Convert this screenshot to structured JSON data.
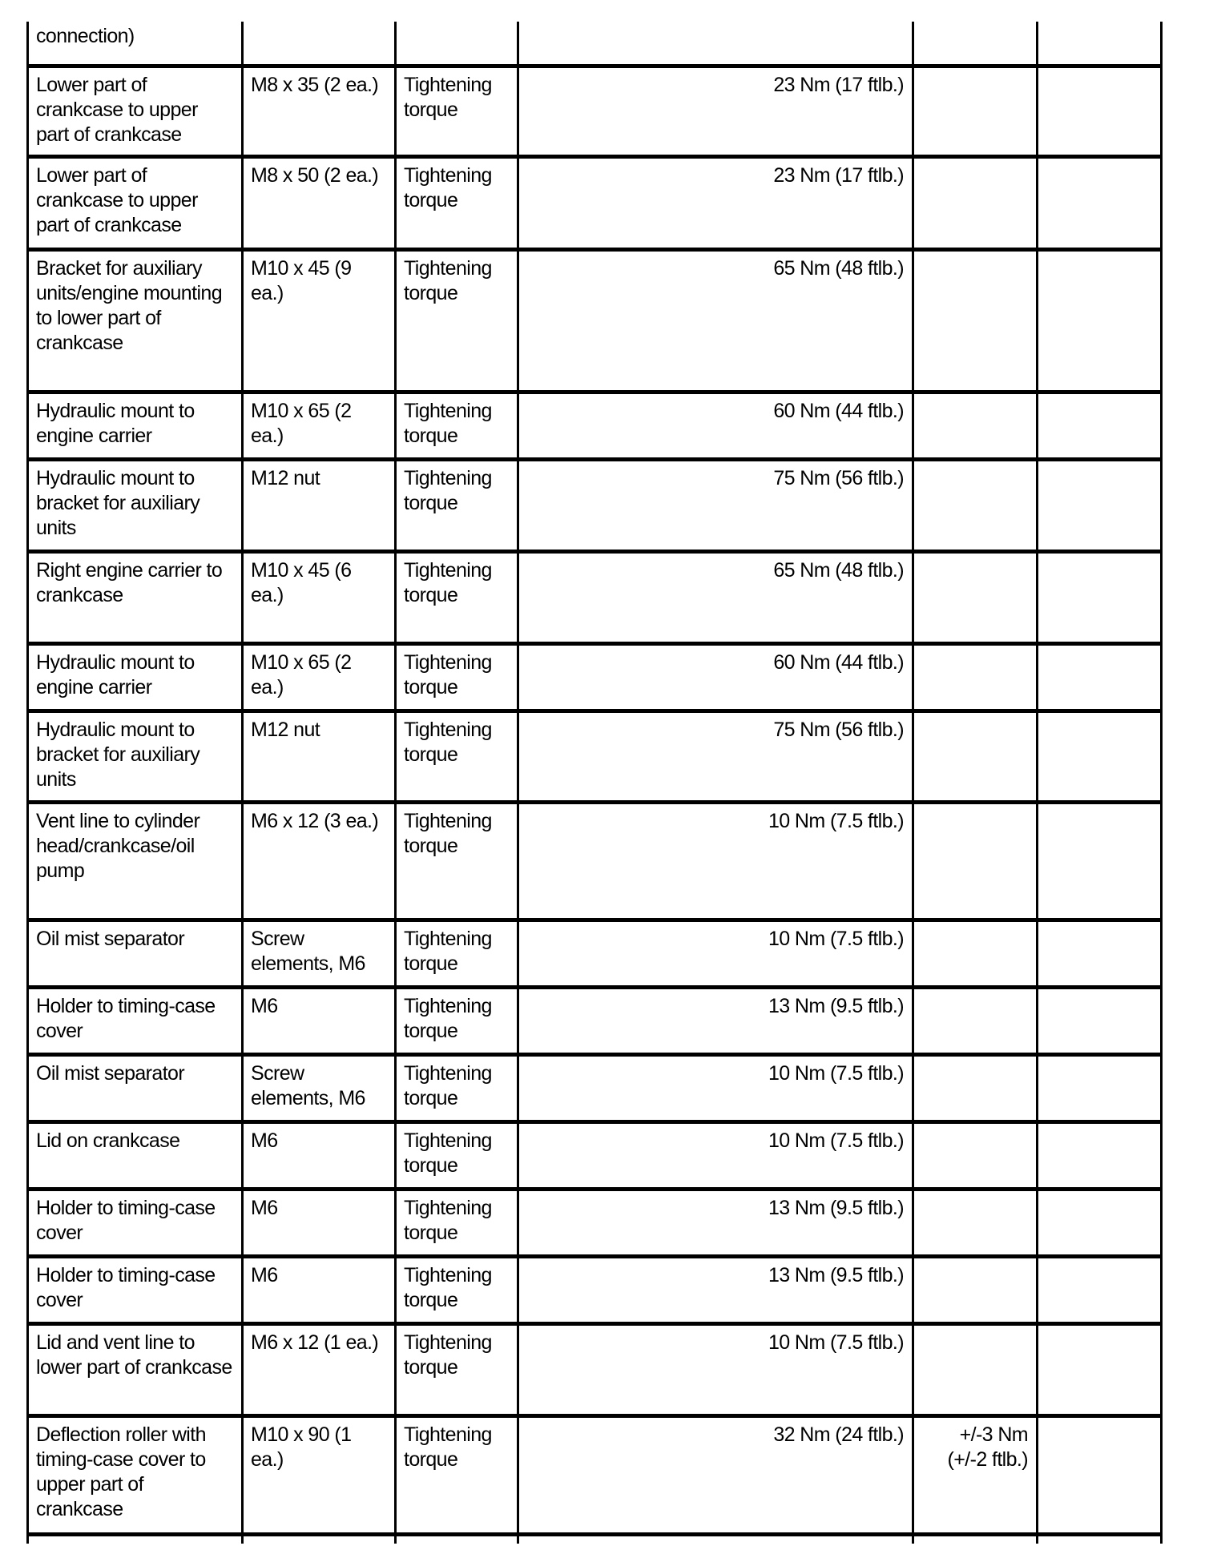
{
  "rows": [
    {
      "component": "connection)",
      "size": "",
      "type": "",
      "value": "",
      "tolerance": "",
      "note": ""
    },
    {
      "component": "Lower part of crankcase to upper part of crankcase",
      "size": "M8 x 35 (2 ea.)",
      "type": "Tightening torque",
      "value": "23 Nm (17 ftlb.)",
      "tolerance": "",
      "note": ""
    },
    {
      "component": "Lower part of crankcase to upper part of crankcase",
      "size": "M8 x 50 (2 ea.)",
      "type": "Tightening torque",
      "value": "23 Nm (17 ftlb.)",
      "tolerance": "",
      "note": ""
    },
    {
      "component": "Bracket for auxiliary units/engine mounting to lower part of crankcase",
      "size": "M10 x 45 (9 ea.)",
      "type": "Tightening torque",
      "value": "65 Nm (48 ftlb.)",
      "tolerance": "",
      "note": ""
    },
    {
      "component": "Hydraulic mount to engine carrier",
      "size": "M10 x 65 (2 ea.)",
      "type": "Tightening torque",
      "value": "60 Nm (44 ftlb.)",
      "tolerance": "",
      "note": ""
    },
    {
      "component": "Hydraulic mount to bracket for auxiliary units",
      "size": "M12 nut",
      "type": "Tightening torque",
      "value": "75 Nm (56 ftlb.)",
      "tolerance": "",
      "note": ""
    },
    {
      "component": "Right engine carrier to crankcase",
      "size": "M10 x 45 (6 ea.)",
      "type": "Tightening torque",
      "value": "65 Nm (48 ftlb.)",
      "tolerance": "",
      "note": ""
    },
    {
      "component": "Hydraulic mount to engine carrier",
      "size": "M10 x 65 (2 ea.)",
      "type": "Tightening torque",
      "value": "60 Nm (44 ftlb.)",
      "tolerance": "",
      "note": ""
    },
    {
      "component": "Hydraulic mount to bracket for auxiliary units",
      "size": "M12 nut",
      "type": "Tightening torque",
      "value": "75 Nm (56 ftlb.)",
      "tolerance": "",
      "note": ""
    },
    {
      "component": "Vent line to cylinder head/crankcase/oil pump",
      "size": "M6 x 12 (3 ea.)",
      "type": "Tightening torque",
      "value": "10 Nm (7.5 ftlb.)",
      "tolerance": "",
      "note": ""
    },
    {
      "component": "Oil mist separator",
      "size": "Screw elements, M6",
      "type": "Tightening torque",
      "value": "10 Nm (7.5 ftlb.)",
      "tolerance": "",
      "note": ""
    },
    {
      "component": "Holder to timing-case cover",
      "size": "M6",
      "type": "Tightening torque",
      "value": "13 Nm (9.5 ftlb.)",
      "tolerance": "",
      "note": ""
    },
    {
      "component": "Oil mist separator",
      "size": "Screw elements, M6",
      "type": "Tightening torque",
      "value": "10 Nm (7.5 ftlb.)",
      "tolerance": "",
      "note": ""
    },
    {
      "component": "Lid on crankcase",
      "size": "M6",
      "type": "Tightening torque",
      "value": "10 Nm (7.5 ftlb.)",
      "tolerance": "",
      "note": ""
    },
    {
      "component": "Holder to timing-case cover",
      "size": "M6",
      "type": "Tightening torque",
      "value": "13 Nm (9.5 ftlb.)",
      "tolerance": "",
      "note": ""
    },
    {
      "component": "Holder to timing-case cover",
      "size": "M6",
      "type": "Tightening torque",
      "value": "13 Nm (9.5 ftlb.)",
      "tolerance": "",
      "note": ""
    },
    {
      "component": "Lid and vent line to lower part of crankcase",
      "size": "M6 x 12 (1 ea.)",
      "type": "Tightening torque",
      "value": "10 Nm (7.5 ftlb.)",
      "tolerance": "",
      "note": ""
    },
    {
      "component": "Deflection roller with timing-case cover to upper part of crankcase",
      "size": "M10 x 90 (1 ea.)",
      "type": "Tightening torque",
      "value": "32 Nm (24 ftlb.)",
      "tolerance": "+/-3 Nm (+/-2 ftlb.)",
      "note": ""
    }
  ]
}
